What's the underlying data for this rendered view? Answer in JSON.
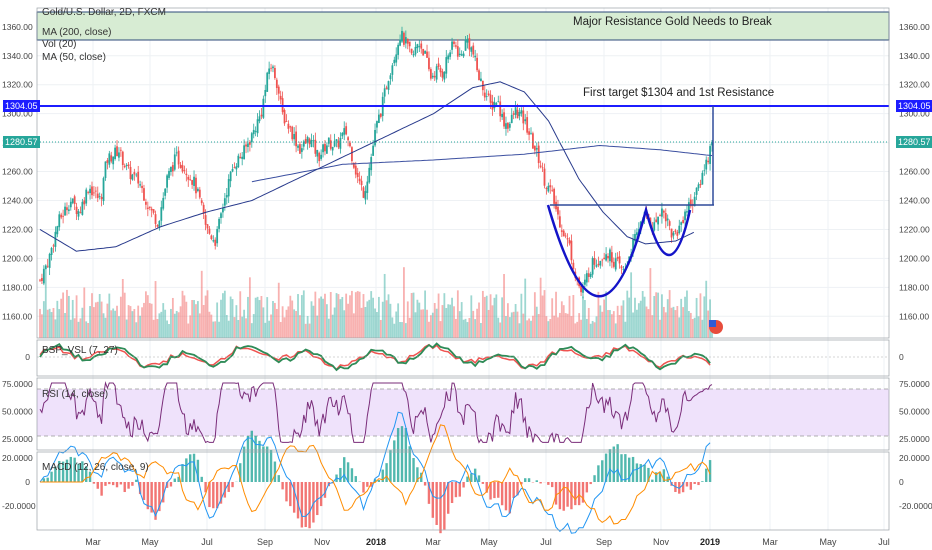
{
  "chart_data": {
    "type": "candlestick",
    "legend": {
      "symbol": "Gold/U.S. Dollar, 2D, FXCM",
      "ma200": "MA (200, close)",
      "vol": "Vol (20)",
      "ma50": "MA (50, close)"
    },
    "annotations": {
      "resistance_zone": "Major Resistance Gold Needs to Break",
      "first_target": "First target $1304 and 1st Resistance"
    },
    "price_axis": {
      "range": [
        1145,
        1373
      ],
      "ticks": [
        "1360.00",
        "1340.00",
        "1320.00",
        "1300.00",
        "1280.00",
        "1260.00",
        "1240.00",
        "1220.00",
        "1200.00",
        "1180.00",
        "1160.00"
      ]
    },
    "levels": {
      "target": {
        "value": 1304.05,
        "label": "1304.05",
        "color": "#1c1cff"
      },
      "last_price": {
        "value": 1280.57,
        "label": "1280.57",
        "color": "#26a69a"
      },
      "resistance_zone": [
        1350,
        1370
      ],
      "neckline": 1236
    },
    "time_axis": {
      "labels": [
        "Mar",
        "May",
        "Jul",
        "Sep",
        "Nov",
        "2018",
        "Mar",
        "May",
        "Jul",
        "Sep",
        "Nov",
        "2019",
        "Mar",
        "May",
        "Jul"
      ]
    },
    "price_path": [
      [
        0,
        1185
      ],
      [
        3,
        1200
      ],
      [
        6,
        1225
      ],
      [
        10,
        1240
      ],
      [
        13,
        1232
      ],
      [
        16,
        1250
      ],
      [
        20,
        1240
      ],
      [
        22,
        1268
      ],
      [
        26,
        1275
      ],
      [
        29,
        1260
      ],
      [
        33,
        1252
      ],
      [
        36,
        1235
      ],
      [
        39,
        1225
      ],
      [
        42,
        1255
      ],
      [
        45,
        1270
      ],
      [
        48,
        1262
      ],
      [
        51,
        1252
      ],
      [
        53,
        1238
      ],
      [
        55,
        1220
      ],
      [
        58,
        1212
      ],
      [
        61,
        1242
      ],
      [
        64,
        1265
      ],
      [
        67,
        1272
      ],
      [
        70,
        1285
      ],
      [
        73,
        1300
      ],
      [
        76,
        1335
      ],
      [
        78,
        1325
      ],
      [
        80,
        1300
      ],
      [
        83,
        1288
      ],
      [
        86,
        1275
      ],
      [
        89,
        1283
      ],
      [
        92,
        1270
      ],
      [
        95,
        1280
      ],
      [
        98,
        1278
      ],
      [
        101,
        1288
      ],
      [
        103,
        1272
      ],
      [
        105,
        1255
      ],
      [
        107,
        1245
      ],
      [
        109,
        1265
      ],
      [
        111,
        1290
      ],
      [
        113,
        1305
      ],
      [
        115,
        1325
      ],
      [
        117,
        1340
      ],
      [
        119,
        1355
      ],
      [
        121,
        1348
      ],
      [
        123,
        1338
      ],
      [
        125,
        1350
      ],
      [
        127,
        1342
      ],
      [
        129,
        1325
      ],
      [
        131,
        1330
      ],
      [
        133,
        1328
      ],
      [
        135,
        1342
      ],
      [
        137,
        1348
      ],
      [
        139,
        1338
      ],
      [
        141,
        1352
      ],
      [
        143,
        1342
      ],
      [
        145,
        1325
      ],
      [
        147,
        1315
      ],
      [
        149,
        1305
      ],
      [
        151,
        1310
      ],
      [
        153,
        1295
      ],
      [
        155,
        1292
      ],
      [
        157,
        1302
      ],
      [
        159,
        1298
      ],
      [
        161,
        1290
      ],
      [
        163,
        1278
      ],
      [
        165,
        1268
      ],
      [
        167,
        1252
      ],
      [
        169,
        1245
      ],
      [
        171,
        1230
      ],
      [
        173,
        1218
      ],
      [
        175,
        1208
      ],
      [
        177,
        1188
      ],
      [
        179,
        1175
      ],
      [
        181,
        1190
      ],
      [
        183,
        1198
      ],
      [
        185,
        1200
      ],
      [
        187,
        1205
      ],
      [
        189,
        1200
      ],
      [
        191,
        1195
      ],
      [
        193,
        1190
      ],
      [
        195,
        1205
      ],
      [
        197,
        1215
      ],
      [
        199,
        1230
      ],
      [
        201,
        1228
      ],
      [
        203,
        1222
      ],
      [
        205,
        1235
      ],
      [
        207,
        1228
      ],
      [
        209,
        1215
      ],
      [
        211,
        1220
      ],
      [
        213,
        1232
      ],
      [
        215,
        1238
      ],
      [
        217,
        1245
      ],
      [
        219,
        1260
      ],
      [
        221,
        1272
      ],
      [
        222,
        1280.57
      ]
    ],
    "ma200_path": [
      [
        70,
        1253
      ],
      [
        100,
        1265
      ],
      [
        130,
        1268
      ],
      [
        160,
        1272
      ],
      [
        185,
        1278
      ],
      [
        205,
        1275
      ],
      [
        222,
        1271
      ]
    ],
    "ma50_path": [
      [
        0,
        1220
      ],
      [
        12,
        1205
      ],
      [
        25,
        1208
      ],
      [
        40,
        1222
      ],
      [
        55,
        1232
      ],
      [
        70,
        1240
      ],
      [
        85,
        1255
      ],
      [
        100,
        1270
      ],
      [
        115,
        1285
      ],
      [
        130,
        1300
      ],
      [
        143,
        1318
      ],
      [
        152,
        1322
      ],
      [
        160,
        1315
      ],
      [
        168,
        1295
      ],
      [
        178,
        1255
      ],
      [
        186,
        1232
      ],
      [
        194,
        1215
      ],
      [
        200,
        1210
      ],
      [
        210,
        1212
      ],
      [
        216,
        1218
      ]
    ],
    "indicators": {
      "bsp": {
        "label": "BSP_VSL (7, 27)",
        "ticks": [
          "0"
        ]
      },
      "rsi": {
        "label": "RSI (14, close)",
        "ticks": [
          "75.0000",
          "50.0000",
          "25.0000"
        ],
        "band": [
          30,
          70
        ]
      },
      "macd": {
        "label": "MACD (12, 26, close, 9)",
        "ticks": [
          "20.0000",
          "0",
          "-20.0000"
        ]
      }
    }
  }
}
